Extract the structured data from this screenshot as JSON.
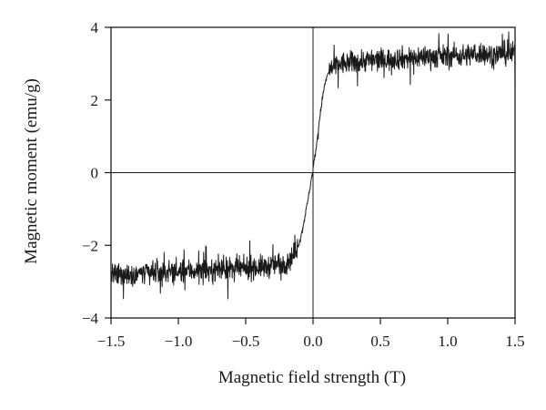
{
  "chart_data": {
    "type": "line",
    "title": "",
    "xlabel": "Magnetic field strength (T)",
    "ylabel": "Magnetic moment (emu/g)",
    "xlim": [
      -1.5,
      1.5
    ],
    "ylim": [
      -4,
      4
    ],
    "x_ticks": [
      -1.5,
      -1.0,
      -0.5,
      0.0,
      0.5,
      1.0,
      1.5
    ],
    "x_tick_labels": [
      "−1.5",
      "−1.0",
      "−0.5",
      "0.0",
      "0.5",
      "1.0",
      "1.5"
    ],
    "y_ticks": [
      -4,
      -2,
      0,
      2,
      4
    ],
    "y_tick_labels": [
      "−4",
      "−2",
      "0",
      "2",
      "4"
    ],
    "grid": false,
    "legend": "none",
    "reference_lines": {
      "x": 0,
      "y": 0
    },
    "series": [
      {
        "color": "#1a1a1a",
        "x": [
          -1.5,
          -1.45,
          -1.4,
          -1.35,
          -1.3,
          -1.25,
          -1.2,
          -1.15,
          -1.1,
          -1.05,
          -1.0,
          -0.95,
          -0.9,
          -0.85,
          -0.8,
          -0.75,
          -0.7,
          -0.65,
          -0.6,
          -0.55,
          -0.5,
          -0.45,
          -0.4,
          -0.35,
          -0.3,
          -0.25,
          -0.2,
          -0.15,
          -0.12,
          -0.1,
          -0.08,
          -0.06,
          -0.04,
          -0.02,
          0.0,
          0.02,
          0.04,
          0.06,
          0.08,
          0.1,
          0.12,
          0.15,
          0.2,
          0.25,
          0.3,
          0.35,
          0.4,
          0.45,
          0.5,
          0.55,
          0.6,
          0.65,
          0.7,
          0.75,
          0.8,
          0.85,
          0.9,
          0.95,
          1.0,
          1.05,
          1.1,
          1.15,
          1.2,
          1.25,
          1.3,
          1.35,
          1.4,
          1.45,
          1.5
        ],
        "y": [
          -2.8,
          -2.85,
          -2.8,
          -2.8,
          -2.75,
          -2.8,
          -2.75,
          -2.75,
          -2.75,
          -2.7,
          -2.75,
          -2.7,
          -2.7,
          -2.7,
          -2.7,
          -2.7,
          -2.65,
          -2.65,
          -2.65,
          -2.65,
          -2.65,
          -2.6,
          -2.6,
          -2.6,
          -2.55,
          -2.5,
          -2.45,
          -2.3,
          -2.1,
          -1.9,
          -1.6,
          -1.2,
          -0.8,
          -0.35,
          0.1,
          0.6,
          1.2,
          1.8,
          2.3,
          2.6,
          2.8,
          2.9,
          3.0,
          3.0,
          3.05,
          3.05,
          3.1,
          3.1,
          3.1,
          3.1,
          3.15,
          3.15,
          3.15,
          3.15,
          3.2,
          3.2,
          3.2,
          3.2,
          3.2,
          3.25,
          3.2,
          3.25,
          3.25,
          3.3,
          3.25,
          3.25,
          3.3,
          3.25,
          3.3
        ],
        "noise_amplitude": 0.22,
        "fill": "none"
      }
    ]
  }
}
